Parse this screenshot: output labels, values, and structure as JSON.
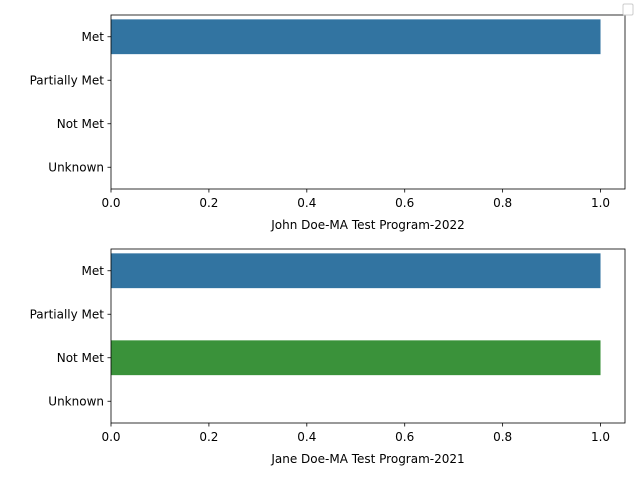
{
  "chart_data": [
    {
      "type": "bar",
      "orientation": "horizontal",
      "title": "",
      "xlabel": "John Doe-MA Test Program-2022",
      "ylabel": "",
      "categories": [
        "Met",
        "Partially Met",
        "Not Met",
        "Unknown"
      ],
      "values": [
        1,
        0,
        0,
        0
      ],
      "colors": [
        "#3274a1",
        "#e1812c",
        "#3a923a",
        "#c03d3e"
      ],
      "xlim": [
        0,
        1.05
      ],
      "xticks": [
        "0.0",
        "0.2",
        "0.4",
        "0.6",
        "0.8",
        "1.0"
      ],
      "grid": false,
      "legend": "top-right",
      "legend_entries": []
    },
    {
      "type": "bar",
      "orientation": "horizontal",
      "title": "",
      "xlabel": "Jane Doe-MA Test Program-2021",
      "ylabel": "",
      "categories": [
        "Met",
        "Partially Met",
        "Not Met",
        "Unknown"
      ],
      "values": [
        1,
        0,
        1,
        0
      ],
      "colors": [
        "#3274a1",
        "#e1812c",
        "#3a923a",
        "#c03d3e"
      ],
      "xlim": [
        0,
        1.05
      ],
      "xticks": [
        "0.0",
        "0.2",
        "0.4",
        "0.6",
        "0.8",
        "1.0"
      ],
      "grid": false,
      "legend": "top-right",
      "legend_entries": []
    }
  ]
}
